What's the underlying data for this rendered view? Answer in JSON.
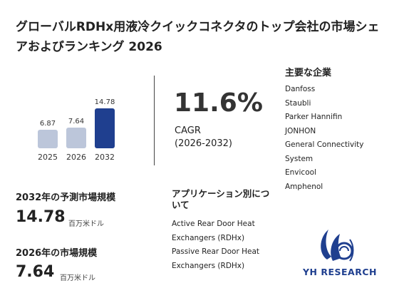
{
  "title": "グローバルRDHx用液冷クイックコネクタのトップ会社の市場シェアおよびランキング 2026",
  "chart_data": {
    "type": "bar",
    "categories": [
      "2025",
      "2026",
      "2032"
    ],
    "values": [
      6.87,
      7.64,
      14.78
    ],
    "ylim": [
      0,
      14.78
    ]
  },
  "colors": {
    "bar_light": "#bcc6da",
    "bar_dark": "#1f3f8f",
    "logo_blue": "#1f3f8f"
  },
  "cagr": {
    "value": "11.6%",
    "label": "CAGR",
    "period": "(2026-2032)"
  },
  "companies": {
    "title": "主要な企業",
    "items": [
      "Danfoss",
      "Staubli",
      "Parker Hannifin",
      "JONHON",
      "General Connectivity",
      "System",
      "Envicool",
      "Amphenol"
    ]
  },
  "market_2032": {
    "label": "2032年の予測市場規模",
    "value": "14.78",
    "unit": "百万米ドル"
  },
  "market_2026": {
    "label": "2026年の市場規模",
    "value": "7.64",
    "unit": "百万米ドル"
  },
  "applications": {
    "title": "アプリケーション別について",
    "items": [
      "Active Rear Door Heat Exchangers (RDHx)",
      "Passive Rear Door Heat Exchangers (RDHx)"
    ]
  },
  "logo": {
    "text": "YH RESEARCH"
  }
}
